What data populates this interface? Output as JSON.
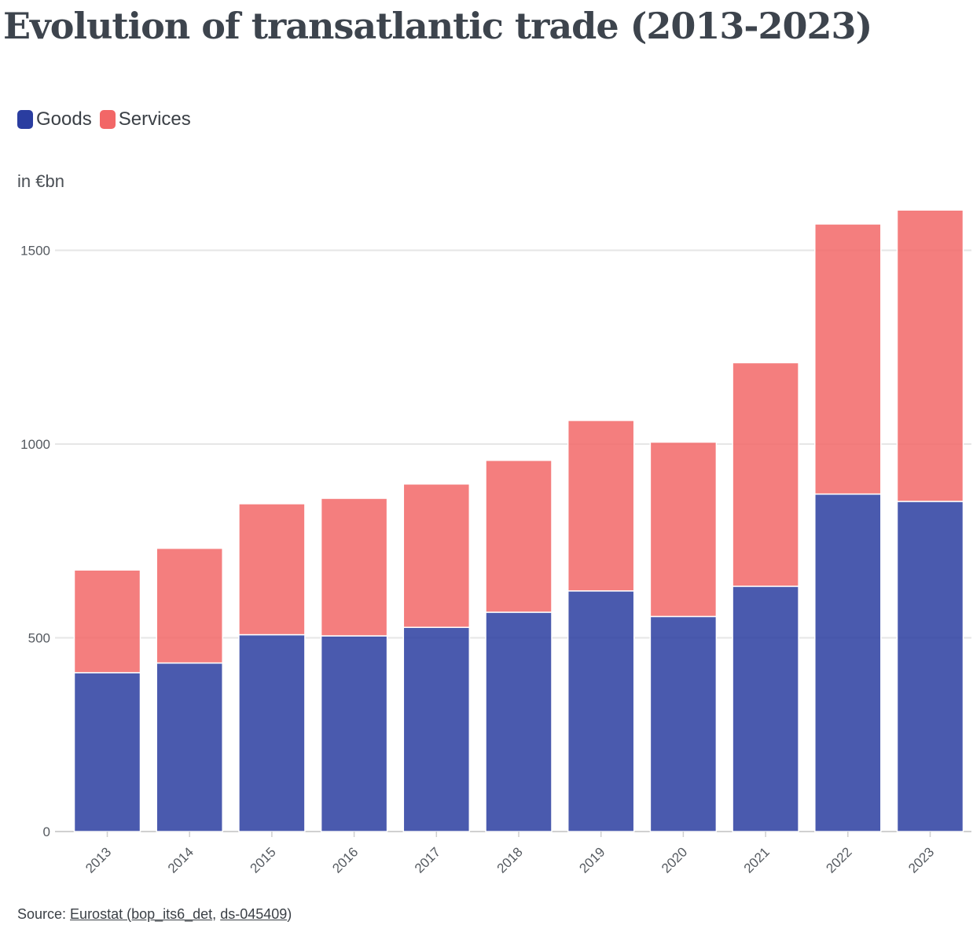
{
  "chart_data": {
    "type": "bar",
    "stacked": true,
    "title": "Evolution of transatlantic trade (2013-2023)",
    "unit_label": "in €bn",
    "categories": [
      "2013",
      "2014",
      "2015",
      "2016",
      "2017",
      "2018",
      "2019",
      "2020",
      "2021",
      "2022",
      "2023"
    ],
    "series": [
      {
        "name": "Goods",
        "color": "#2a3da0",
        "values": [
          410,
          435,
          508,
          505,
          527,
          566,
          621,
          555,
          633,
          871,
          852
        ]
      },
      {
        "name": "Services",
        "color": "#f26767",
        "values": [
          265,
          296,
          338,
          355,
          370,
          392,
          440,
          450,
          577,
          697,
          752
        ]
      }
    ],
    "ylim": [
      0,
      1600
    ],
    "yticks": [
      0,
      500,
      1000,
      1500
    ],
    "grid": true,
    "legend_position": "top-left"
  },
  "source": {
    "prefix": "Source: ",
    "link1": "Eurostat (bop_its6_det",
    "separator": ", ",
    "link2": "ds-045409",
    "suffix": ")"
  }
}
